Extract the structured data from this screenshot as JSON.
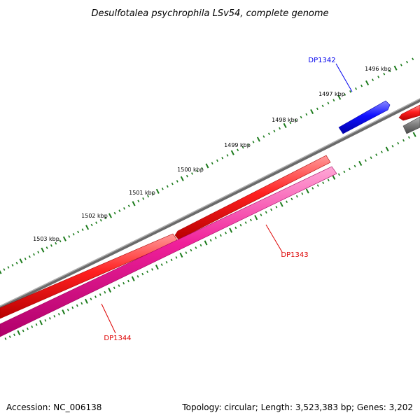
{
  "title": "Desulfotalea psychrophila LSv54, complete genome",
  "footer": {
    "accession": "Accession: NC_006138",
    "stats": "Topology: circular; Length: 3,523,383 bp; Genes: 3,202"
  },
  "scale": {
    "unit": "kbp",
    "labels": [
      "1496 kbp",
      "1497 kbp",
      "1498 kbp",
      "1499 kbp",
      "1500 kbp",
      "1501 kbp",
      "1502 kbp",
      "1503 kbp"
    ]
  },
  "genes": [
    {
      "name": "DP1342",
      "color": "#0000ee",
      "strand": "forward"
    },
    {
      "name": "DP1343",
      "color": "#dd0000",
      "strand": "forward"
    },
    {
      "name": "DP1344",
      "color": "#dd0000",
      "strand": "reverse"
    }
  ],
  "colors": {
    "backbone": "#808080",
    "gene_red": "#ee0000",
    "gene_pink": "#ee1a8c",
    "gene_blue": "#0000ee",
    "gene_gray": "#707070",
    "tick": "#1a7a1a"
  }
}
